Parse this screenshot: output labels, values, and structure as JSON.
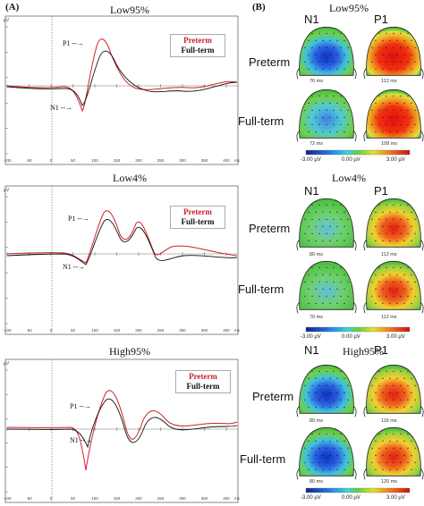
{
  "panels": {
    "left": "(A)",
    "right": "(B)"
  },
  "legend": {
    "preterm": "Preterm",
    "fullterm": "Full-term"
  },
  "colors": {
    "preterm": "#d0202a",
    "fullterm": "#111111"
  },
  "groups": {
    "preterm": "Preterm",
    "fullterm": "Full-term"
  },
  "components": {
    "n1": "N1",
    "p1": "P1"
  },
  "colorbar": {
    "min": "-3.00 µV",
    "mid": "0.00 µV",
    "max": "3.00 µV"
  },
  "conditions": [
    {
      "title": "Low95%",
      "n1_label": "N1",
      "p1_label": "P1",
      "topo_ms": {
        "preterm_n1": "76 ms",
        "preterm_p1": "112 ms",
        "fullterm_n1": "72 ms",
        "fullterm_p1": "108 ms"
      }
    },
    {
      "title": "Low4%",
      "n1_label": "N1",
      "p1_label": "P1",
      "topo_ms": {
        "preterm_n1": "80 ms",
        "preterm_p1": "112 ms",
        "fullterm_n1": "70 ms",
        "fullterm_p1": "112 ms"
      }
    },
    {
      "title": "High95%",
      "n1_label": "N1",
      "p1_label": "P1",
      "topo_ms": {
        "preterm_n1": "80 ms",
        "preterm_p1": "116 ms",
        "fullterm_n1": "80 ms",
        "fullterm_p1": "120 ms"
      }
    }
  ],
  "chart_data": [
    {
      "type": "line",
      "title": "Low95%",
      "xlabel": "ms",
      "ylabel": "µV",
      "x_ticks": [
        "-100",
        "-50",
        "0",
        "50",
        "100",
        "150",
        "200",
        "250",
        "300",
        "350",
        "400"
      ],
      "series": [
        {
          "name": "Preterm"
        },
        {
          "name": "Full-term"
        }
      ]
    },
    {
      "type": "line",
      "title": "Low4%",
      "xlabel": "ms",
      "ylabel": "µV",
      "x_ticks": [
        "-100",
        "-50",
        "0",
        "50",
        "100",
        "150",
        "200",
        "250",
        "300",
        "350",
        "400"
      ],
      "series": [
        {
          "name": "Preterm"
        },
        {
          "name": "Full-term"
        }
      ]
    },
    {
      "type": "line",
      "title": "High95%",
      "xlabel": "ms",
      "ylabel": "µV",
      "x_ticks": [
        "-100",
        "-50",
        "0",
        "50",
        "100",
        "150",
        "200",
        "250",
        "300",
        "350",
        "400"
      ],
      "series": [
        {
          "name": "Preterm"
        },
        {
          "name": "Full-term"
        }
      ]
    }
  ]
}
